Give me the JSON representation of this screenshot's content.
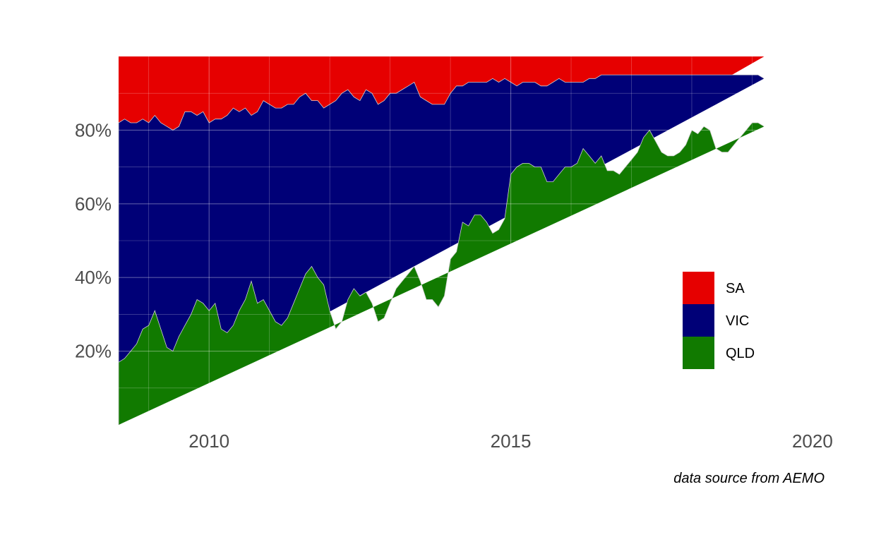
{
  "chart_data": {
    "type": "area",
    "stacked": true,
    "normalized": true,
    "caption": "data source from AEMO",
    "x_range": [
      2008.5,
      2020.2
    ],
    "y_range_percent": [
      0,
      100
    ],
    "x_ticks": [
      {
        "value": 2010,
        "label": "2010"
      },
      {
        "value": 2015,
        "label": "2015"
      },
      {
        "value": 2020,
        "label": "2020"
      }
    ],
    "y_ticks": [
      {
        "value": 20,
        "label": "20%"
      },
      {
        "value": 40,
        "label": "40%"
      },
      {
        "value": 60,
        "label": "60%"
      },
      {
        "value": 80,
        "label": "80%"
      }
    ],
    "grid": true,
    "legend_placement": "lower-right inside plot",
    "legend": [
      {
        "name": "SA",
        "color": "#e60000"
      },
      {
        "name": "VIC",
        "color": "#000077"
      },
      {
        "name": "QLD",
        "color": "#117a00"
      }
    ],
    "x": [
      2008.5,
      2008.6,
      2008.7,
      2008.8,
      2008.9,
      2009.0,
      2009.1,
      2009.2,
      2009.3,
      2009.4,
      2009.5,
      2009.6,
      2009.7,
      2009.8,
      2009.9,
      2010.0,
      2010.1,
      2010.2,
      2010.3,
      2010.4,
      2010.5,
      2010.6,
      2010.7,
      2010.8,
      2010.9,
      2011.0,
      2011.1,
      2011.2,
      2011.3,
      2011.4,
      2011.5,
      2011.6,
      2011.7,
      2011.8,
      2011.9,
      2012.0,
      2012.1,
      2012.2,
      2012.3,
      2012.4,
      2012.5,
      2012.6,
      2012.7,
      2012.8,
      2012.9,
      2013.0,
      2013.1,
      2013.2,
      2013.3,
      2013.4,
      2013.5,
      2013.6,
      2013.7,
      2013.8,
      2013.9,
      2014.0,
      2014.1,
      2014.2,
      2014.3,
      2014.4,
      2014.5,
      2014.6,
      2014.7,
      2014.8,
      2014.9,
      2015.0,
      2015.1,
      2015.2,
      2015.3,
      2015.4,
      2015.5,
      2015.6,
      2015.7,
      2015.8,
      2015.9,
      2016.0,
      2016.1,
      2016.2,
      2016.3,
      2016.4,
      2016.5,
      2016.6,
      2016.7,
      2016.8,
      2016.9,
      2017.0,
      2017.1,
      2017.2,
      2017.3,
      2017.4,
      2017.5,
      2017.6,
      2017.7,
      2017.8,
      2017.9,
      2018.0,
      2018.1,
      2018.2,
      2018.3,
      2018.4,
      2018.5,
      2018.6,
      2018.7,
      2018.8,
      2018.9,
      2019.0,
      2019.1,
      2019.2,
      2019.3,
      2019.4,
      2019.5,
      2019.6,
      2019.7,
      2019.8,
      2019.9,
      2020.0,
      2020.1,
      2020.2
    ],
    "series": [
      {
        "name": "QLD",
        "color": "#117a00",
        "cumulative_top_percent": [
          17,
          18,
          20,
          22,
          26,
          27,
          31,
          26,
          21,
          20,
          24,
          27,
          30,
          34,
          33,
          31,
          33,
          26,
          25,
          27,
          31,
          34,
          39,
          33,
          34,
          31,
          28,
          27,
          29,
          33,
          37,
          41,
          43,
          40,
          38,
          31,
          26,
          28,
          34,
          37,
          35,
          36,
          33,
          28,
          29,
          33,
          37,
          39,
          41,
          43,
          39,
          34,
          34,
          32,
          35,
          45,
          47,
          55,
          54,
          57,
          57,
          55,
          52,
          53,
          56,
          68,
          70,
          71,
          71,
          70,
          70,
          66,
          66,
          68,
          70,
          70,
          71,
          75,
          73,
          71,
          73,
          69,
          69,
          68,
          70,
          72,
          74,
          78,
          80,
          77,
          74,
          73,
          73,
          74,
          76,
          80,
          79,
          81,
          80,
          75,
          74,
          74,
          76,
          78,
          80,
          82,
          82,
          81
        ],
        "values_percent": [
          17,
          18,
          20,
          22,
          26,
          27,
          31,
          26,
          21,
          20,
          24,
          27,
          30,
          34,
          33,
          31,
          33,
          26,
          25,
          27,
          31,
          34,
          39,
          33,
          34,
          31,
          28,
          27,
          29,
          33,
          37,
          41,
          43,
          40,
          38,
          31,
          26,
          28,
          34,
          37,
          35,
          36,
          33,
          28,
          29,
          33,
          37,
          39,
          41,
          43,
          39,
          34,
          34,
          32,
          35,
          45,
          47,
          55,
          54,
          57,
          57,
          55,
          52,
          53,
          56,
          68,
          70,
          71,
          71,
          70,
          70,
          66,
          66,
          68,
          70,
          70,
          71,
          75,
          73,
          71,
          73,
          69,
          69,
          68,
          70,
          72,
          74,
          78,
          80,
          77,
          74,
          73,
          73,
          74,
          76,
          80,
          79,
          81,
          80,
          75,
          74,
          74,
          76,
          78,
          80,
          82,
          82,
          81
        ]
      },
      {
        "name": "VIC",
        "color": "#000077",
        "cumulative_top_percent": [
          82,
          83,
          82,
          82,
          83,
          82,
          84,
          82,
          81,
          80,
          81,
          85,
          85,
          84,
          85,
          82,
          83,
          83,
          84,
          86,
          85,
          86,
          84,
          85,
          88,
          87,
          86,
          86,
          87,
          87,
          89,
          90,
          88,
          88,
          86,
          87,
          88,
          90,
          91,
          89,
          88,
          91,
          90,
          87,
          88,
          90,
          90,
          91,
          92,
          93,
          89,
          88,
          87,
          87,
          87,
          90,
          92,
          92,
          93,
          93,
          93,
          93,
          94,
          93,
          94,
          93,
          92,
          93,
          93,
          93,
          92,
          92,
          93,
          94,
          93,
          93,
          93,
          93,
          94,
          94,
          95,
          95,
          95,
          95,
          95,
          95,
          95,
          95,
          95,
          95,
          95,
          95,
          95,
          95,
          95,
          95,
          95,
          95,
          95,
          95,
          95,
          95,
          95,
          95,
          95,
          95,
          95,
          94
        ],
        "values_percent": [
          65,
          65,
          62,
          60,
          57,
          55,
          53,
          56,
          60,
          60,
          57,
          58,
          55,
          50,
          52,
          51,
          50,
          57,
          59,
          59,
          54,
          52,
          45,
          52,
          54,
          56,
          58,
          59,
          58,
          54,
          52,
          49,
          45,
          48,
          48,
          56,
          62,
          62,
          57,
          52,
          53,
          55,
          57,
          59,
          59,
          57,
          53,
          52,
          51,
          50,
          50,
          54,
          53,
          55,
          52,
          45,
          45,
          37,
          39,
          36,
          36,
          38,
          42,
          40,
          38,
          25,
          22,
          22,
          22,
          23,
          22,
          26,
          27,
          26,
          23,
          23,
          22,
          18,
          21,
          23,
          22,
          26,
          26,
          27,
          25,
          23,
          21,
          17,
          15,
          18,
          21,
          22,
          22,
          21,
          19,
          15,
          16,
          14,
          15,
          20,
          21,
          21,
          19,
          17,
          15,
          13,
          13,
          13
        ]
      },
      {
        "name": "SA",
        "color": "#e60000",
        "cumulative_top_percent": [
          100,
          100,
          100,
          100,
          100,
          100,
          100,
          100,
          100,
          100,
          100,
          100,
          100,
          100,
          100,
          100,
          100,
          100,
          100,
          100,
          100,
          100,
          100,
          100,
          100,
          100,
          100,
          100,
          100,
          100,
          100,
          100,
          100,
          100,
          100,
          100,
          100,
          100,
          100,
          100,
          100,
          100,
          100,
          100,
          100,
          100,
          100,
          100,
          100,
          100,
          100,
          100,
          100,
          100,
          100,
          100,
          100,
          100,
          100,
          100,
          100,
          100,
          100,
          100,
          100,
          100,
          100,
          100,
          100,
          100,
          100,
          100,
          100,
          100,
          100,
          100,
          100,
          100,
          100,
          100,
          100,
          100,
          100,
          100,
          100,
          100,
          100,
          100,
          100,
          100,
          100,
          100,
          100,
          100,
          100,
          100,
          100,
          100,
          100,
          100,
          100,
          100,
          100,
          100,
          100,
          100,
          100,
          100
        ],
        "values_percent": [
          18,
          17,
          18,
          18,
          17,
          18,
          16,
          18,
          19,
          20,
          19,
          15,
          15,
          16,
          15,
          18,
          17,
          17,
          16,
          14,
          15,
          14,
          16,
          15,
          12,
          13,
          14,
          14,
          13,
          13,
          11,
          10,
          12,
          12,
          14,
          13,
          12,
          10,
          9,
          11,
          12,
          9,
          10,
          13,
          12,
          10,
          10,
          9,
          8,
          7,
          11,
          12,
          13,
          13,
          13,
          10,
          8,
          8,
          7,
          7,
          7,
          7,
          6,
          7,
          6,
          7,
          8,
          7,
          7,
          7,
          8,
          8,
          7,
          6,
          7,
          7,
          7,
          7,
          6,
          6,
          5,
          5,
          5,
          5,
          5,
          5,
          5,
          5,
          5,
          5,
          5,
          5,
          5,
          5,
          5,
          5,
          5,
          5,
          5,
          5,
          5,
          5,
          5,
          5,
          5,
          5,
          5,
          6
        ]
      }
    ]
  }
}
